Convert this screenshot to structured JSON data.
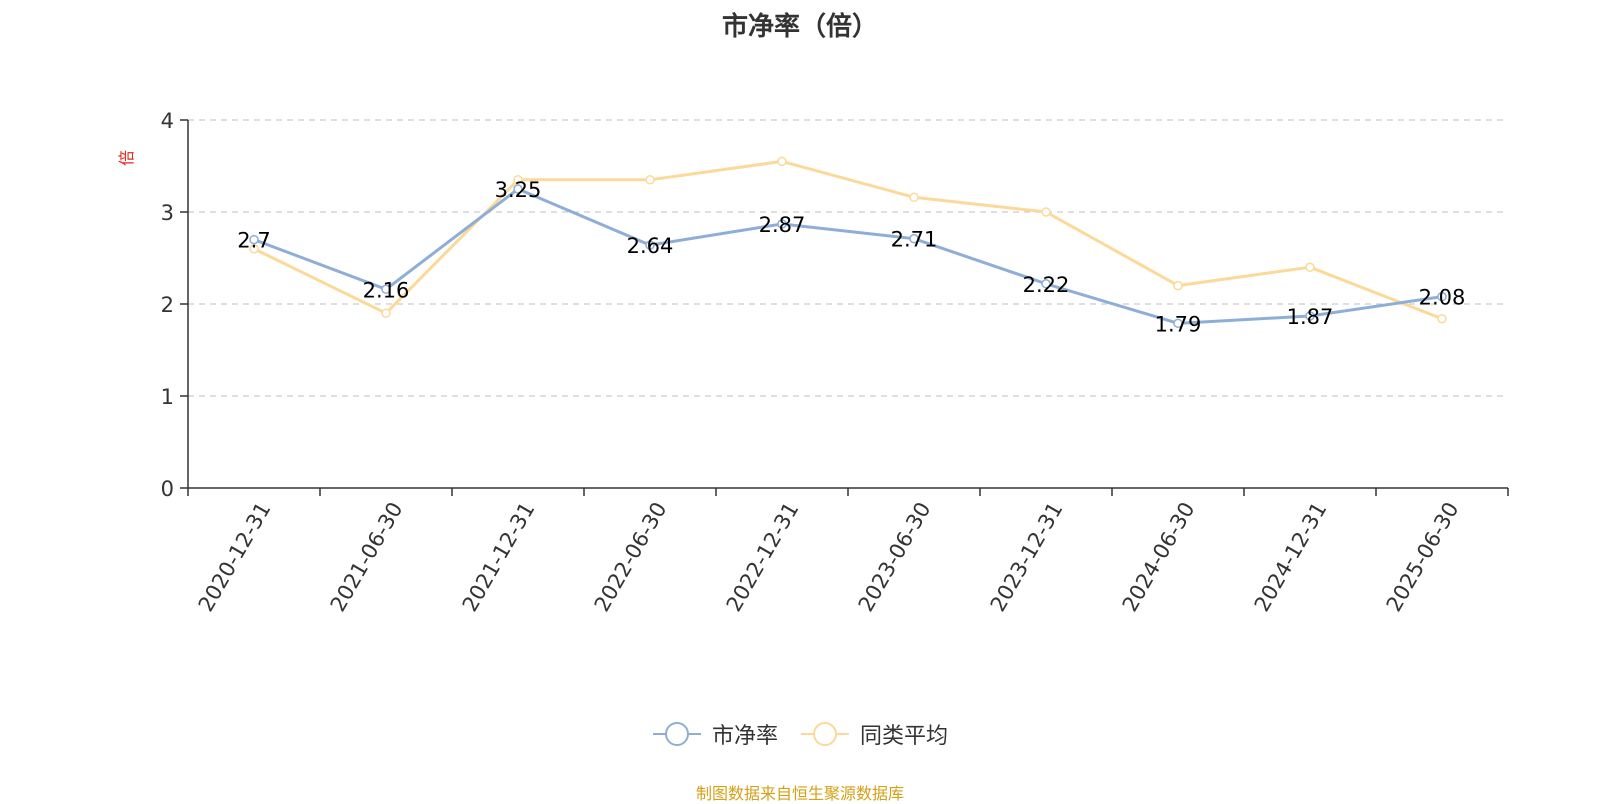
{
  "chart_data": {
    "type": "line",
    "title": "市净率（倍）",
    "ylabel": "倍",
    "xlabel": "",
    "ylim": [
      0,
      4
    ],
    "yticks": [
      0,
      1,
      2,
      3,
      4
    ],
    "grid": true,
    "legend_position": "bottom-center",
    "categories": [
      "2020-12-31",
      "2021-06-30",
      "2021-12-31",
      "2022-06-30",
      "2022-12-31",
      "2023-06-30",
      "2023-12-31",
      "2024-06-30",
      "2024-12-31",
      "2025-06-30"
    ],
    "series": [
      {
        "name": "市净率",
        "color": "#8eaed8",
        "values": [
          2.7,
          2.16,
          3.25,
          2.64,
          2.87,
          2.71,
          2.22,
          1.79,
          1.87,
          2.08
        ],
        "data_labels": [
          "2.7",
          "2.16",
          "3.25",
          "2.64",
          "2.87",
          "2.71",
          "2.22",
          "1.79",
          "1.87",
          "2.08"
        ]
      },
      {
        "name": "同类平均",
        "color": "#fcd998",
        "values": [
          2.6,
          1.9,
          3.35,
          3.35,
          3.55,
          3.16,
          3.0,
          2.2,
          2.4,
          1.84
        ]
      }
    ]
  },
  "source_note": "制图数据来自恒生聚源数据库",
  "colors": {
    "axis": "#333333",
    "grid": "#cccccc",
    "ylabel": "#e8251e",
    "source": "#d4a017"
  }
}
